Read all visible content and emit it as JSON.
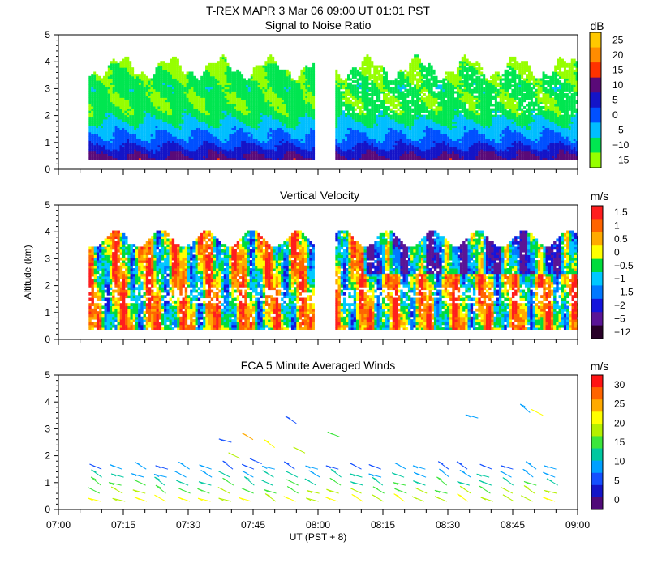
{
  "header": {
    "title": "T-REX   MAPR   3 Mar 06   09:00 UT   01:01   PST"
  },
  "chart_data": [
    {
      "type": "heatmap",
      "title": "Signal to Noise Ratio",
      "ylabel": "",
      "ylim": [
        0,
        5
      ],
      "yticks": [
        "0",
        "1",
        "2",
        "3",
        "4",
        "5"
      ],
      "colorbar_unit": "dB",
      "colorbar_labels": [
        "25",
        "20",
        "15",
        "10",
        "5",
        "0",
        "−5",
        "−10",
        "−15"
      ],
      "colorbar_colors": [
        "#ffc800",
        "#ff8c00",
        "#ff3200",
        "#5a0a78",
        "#1414c8",
        "#0050ff",
        "#00beff",
        "#00e650",
        "#96ff00"
      ],
      "segments": [
        [
          "07:07",
          "07:59"
        ],
        [
          "08:04",
          "09:00"
        ]
      ],
      "profile_altitude_km": [
        0.3,
        1.0,
        1.5,
        2.0,
        2.5,
        3.0,
        3.5,
        4.0
      ],
      "profile_values_dB": [
        10,
        0,
        -5,
        -10,
        -12,
        -10,
        -12,
        -15
      ]
    },
    {
      "type": "heatmap",
      "title": "Vertical Velocity",
      "ylabel": "Altitude (km)",
      "ylim": [
        0,
        5
      ],
      "yticks": [
        "0",
        "1",
        "2",
        "3",
        "4",
        "5"
      ],
      "colorbar_unit": "m/s",
      "colorbar_labels": [
        "1.5",
        "1",
        "0.5",
        "0",
        "−0.5",
        "−1",
        "−1.5",
        "−2",
        "−5",
        "−12"
      ],
      "colorbar_colors": [
        "#ff1e1e",
        "#ff6400",
        "#ffaa00",
        "#ffff00",
        "#00dc3c",
        "#00c8ff",
        "#0078ff",
        "#1414dc",
        "#5a1496",
        "#280028"
      ],
      "segments": [
        [
          "07:07",
          "07:59"
        ],
        [
          "08:04",
          "09:00"
        ]
      ]
    },
    {
      "type": "scatter",
      "title": "FCA 5 Minute Averaged Winds",
      "xlabel": "UT  (PST + 8)",
      "ylim": [
        0,
        5
      ],
      "yticks": [
        "0",
        "1",
        "2",
        "3",
        "4",
        "5"
      ],
      "xticks": [
        "07:00",
        "07:15",
        "07:30",
        "07:45",
        "08:00",
        "08:15",
        "08:30",
        "08:45",
        "09:00"
      ],
      "colorbar_unit": "m/s",
      "colorbar_labels": [
        "30",
        "25",
        "20",
        "15",
        "10",
        "5",
        "0"
      ],
      "colorbar_colors": [
        "#ff1414",
        "#ff6400",
        "#ffaa00",
        "#ffff00",
        "#b4f000",
        "#3ce63c",
        "#00c8a0",
        "#00a0ff",
        "#1450ff",
        "#1414c8",
        "#500a78"
      ],
      "barb_times_min": [
        10,
        15,
        20,
        25,
        30,
        35,
        40,
        45,
        50,
        55,
        60,
        65,
        70,
        75,
        80,
        85,
        90,
        95,
        100,
        105,
        110,
        115
      ],
      "barb_altitudes_km": [
        0.3,
        0.6,
        0.9,
        1.2,
        1.5
      ],
      "upper_barbs": [
        {
          "t": 40,
          "alt": 2.5
        },
        {
          "t": 45,
          "alt": 2.6
        },
        {
          "t": 50,
          "alt": 2.3
        },
        {
          "t": 55,
          "alt": 3.2
        },
        {
          "t": 42,
          "alt": 1.9
        },
        {
          "t": 47,
          "alt": 1.7
        },
        {
          "t": 57,
          "alt": 2.1
        },
        {
          "t": 65,
          "alt": 2.7
        },
        {
          "t": 97,
          "alt": 3.4
        },
        {
          "t": 109,
          "alt": 3.6
        },
        {
          "t": 112,
          "alt": 3.5
        }
      ]
    }
  ]
}
